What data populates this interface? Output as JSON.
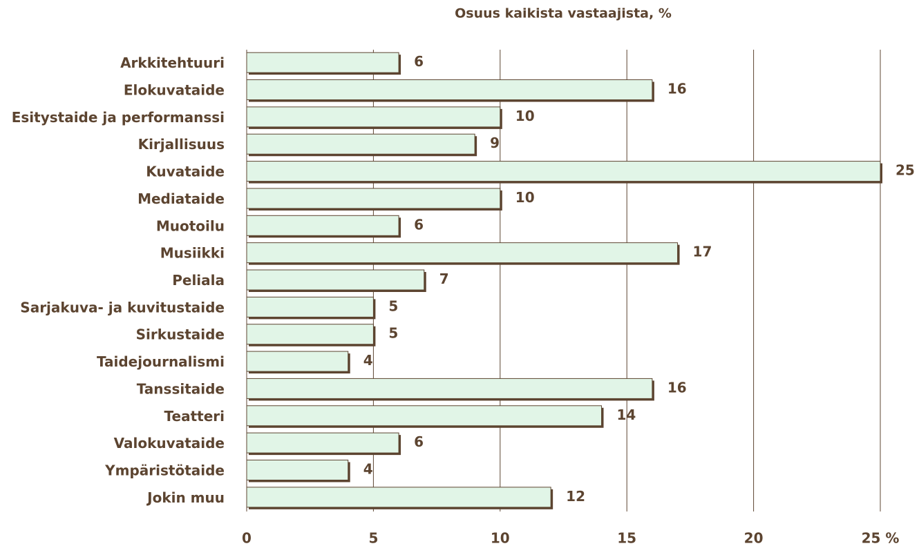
{
  "chart_data": {
    "type": "barh",
    "title": "Osuus kaikista vastaajista, %",
    "categories": [
      "Arkkitehtuuri",
      "Elokuvataide",
      "Esitystaide ja performanssi",
      "Kirjallisuus",
      "Kuvataide",
      "Mediataide",
      "Muotoilu",
      "Musiikki",
      "Peliala",
      "Sarjakuva- ja kuvitustaide",
      "Sirkustaide",
      "Taidejournalismi",
      "Tanssitaide",
      "Teatteri",
      "Valokuvataide",
      "Ympäristötaide",
      "Jokin muu"
    ],
    "values": [
      6,
      16,
      10,
      9,
      25,
      10,
      6,
      17,
      7,
      5,
      5,
      4,
      16,
      14,
      6,
      4,
      12
    ],
    "color": "#e1f5e7",
    "edge_color": "#5c4430",
    "xlim": [
      0,
      25
    ],
    "xticks": [
      0,
      5,
      10,
      15,
      20,
      {
        "value": 25,
        "label": "25 %"
      }
    ],
    "grid": true
  }
}
